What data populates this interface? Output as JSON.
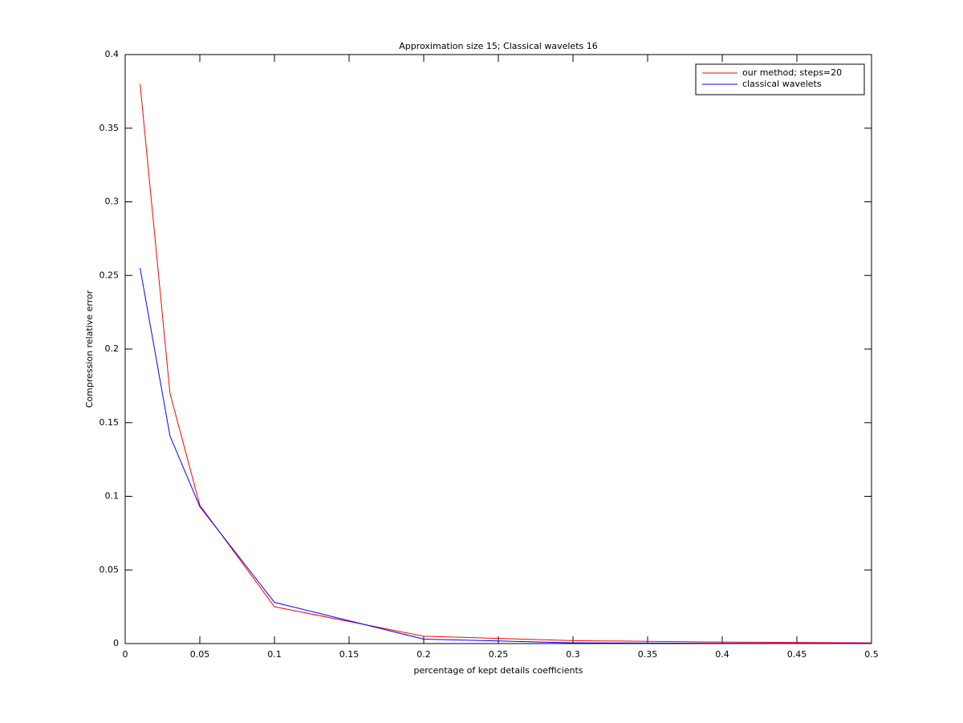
{
  "chart_data": {
    "type": "line",
    "title": "Approximation size 15; Classical wavelets 16",
    "x_label": "percentage of kept details coefficients",
    "y_label": "Compression relative error",
    "x": [
      0.01,
      0.03,
      0.05,
      0.1,
      0.2,
      0.3,
      0.4,
      0.5
    ],
    "series": [
      {
        "name": "our method; steps=20",
        "color": "#ff0000",
        "values": [
          0.38,
          0.17,
          0.094,
          0.025,
          0.005,
          0.002,
          0.001,
          0.0005
        ]
      },
      {
        "name": "classical wavelets",
        "color": "#0000ff",
        "values": [
          0.255,
          0.141,
          0.093,
          0.028,
          0.003,
          0.0005,
          0.0002,
          0.0001
        ]
      }
    ],
    "xlim": [
      0,
      0.5
    ],
    "xticks": [
      0,
      0.05,
      0.1,
      0.15,
      0.2,
      0.25,
      0.3,
      0.35,
      0.4,
      0.45,
      0.5
    ],
    "ylim": [
      0,
      0.4
    ],
    "yticks": [
      0,
      0.05,
      0.1,
      0.15,
      0.2,
      0.25,
      0.3,
      0.35,
      0.4
    ],
    "grid": false,
    "legend_position": "upper-right"
  }
}
